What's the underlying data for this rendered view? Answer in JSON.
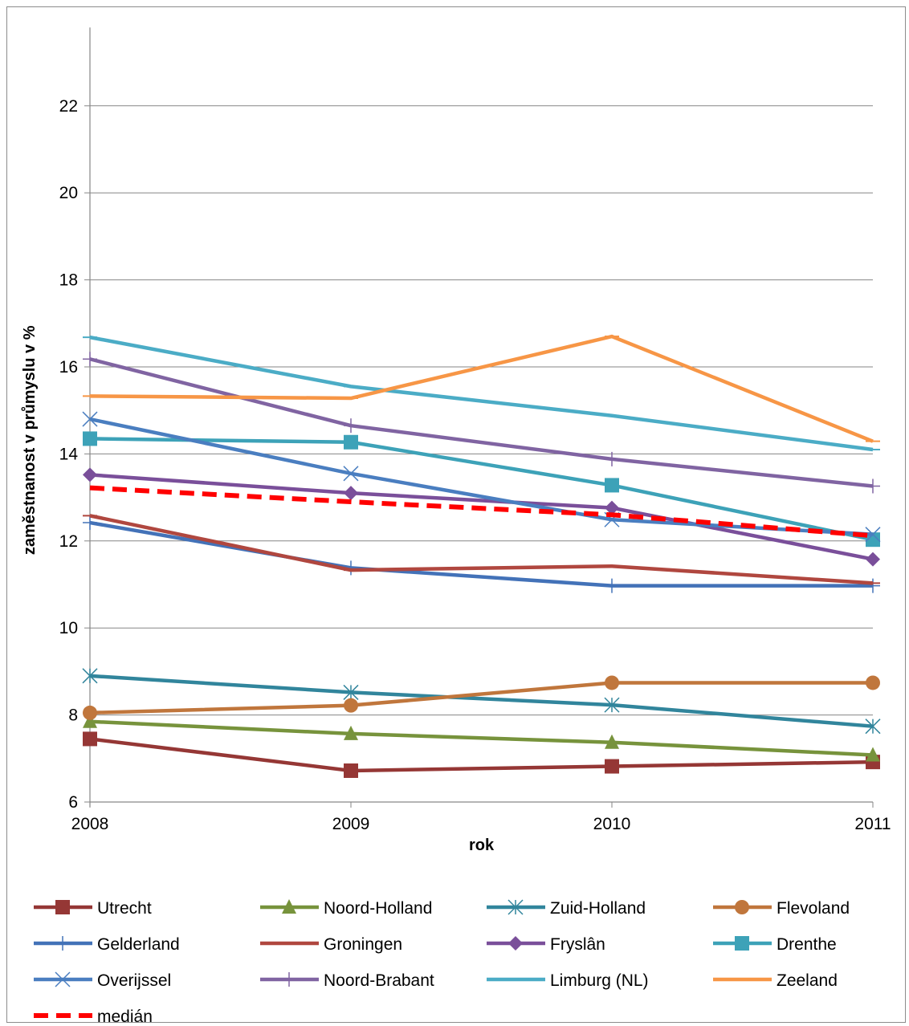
{
  "chart_data": {
    "type": "line",
    "title": "",
    "xlabel": "rok",
    "ylabel": "zaměstnanost v průmyslu v %",
    "x": [
      "2008",
      "2009",
      "2010",
      "2011"
    ],
    "ylim": [
      6,
      23
    ],
    "yticks": [
      6,
      8,
      10,
      12,
      14,
      16,
      18,
      20,
      22
    ],
    "grid": "horizontal",
    "legend_position": "bottom",
    "series": [
      {
        "name": "Utrecht",
        "color": "#953735",
        "marker": "square",
        "values": [
          7.45,
          6.72,
          6.82,
          6.92
        ]
      },
      {
        "name": "Noord-Holland",
        "color": "#77933c",
        "marker": "triangle",
        "values": [
          7.85,
          7.57,
          7.37,
          7.08
        ]
      },
      {
        "name": "Zuid-Holland",
        "color": "#31859c",
        "marker": "asterisk",
        "values": [
          8.9,
          8.52,
          8.23,
          7.74
        ]
      },
      {
        "name": "Flevoland",
        "color": "#c0763c",
        "marker": "circle",
        "values": [
          8.05,
          8.22,
          8.74,
          8.74
        ]
      },
      {
        "name": "Gelderland",
        "color": "#4372b8",
        "marker": "plus",
        "values": [
          12.42,
          11.38,
          10.97,
          10.97
        ]
      },
      {
        "name": "Groningen",
        "color": "#b0473f",
        "marker": "dash",
        "values": [
          12.58,
          11.33,
          11.42,
          11.03
        ]
      },
      {
        "name": "Fryslân",
        "color": "#7a4f9a",
        "marker": "diamond",
        "values": [
          13.52,
          13.1,
          12.76,
          11.58
        ]
      },
      {
        "name": "Drenthe",
        "color": "#3da2b8",
        "marker": "square",
        "values": [
          14.35,
          14.27,
          13.28,
          12.03
        ]
      },
      {
        "name": "Overijssel",
        "color": "#4a7ec0",
        "marker": "x",
        "values": [
          14.8,
          13.55,
          12.49,
          12.15
        ]
      },
      {
        "name": "Noord-Brabant",
        "color": "#8064a2",
        "marker": "plus",
        "values": [
          16.18,
          14.65,
          13.88,
          13.26
        ]
      },
      {
        "name": "Limburg (NL)",
        "color": "#4bacc6",
        "marker": "dash",
        "values": [
          16.68,
          15.55,
          14.88,
          14.1
        ]
      },
      {
        "name": "Zeeland",
        "color": "#f79646",
        "marker": "dash",
        "values": [
          15.33,
          15.28,
          16.7,
          14.29
        ]
      },
      {
        "name": "medián",
        "color": "#ff0000",
        "marker": "dashed-line",
        "values": [
          13.22,
          12.9,
          12.6,
          12.12
        ]
      }
    ]
  }
}
